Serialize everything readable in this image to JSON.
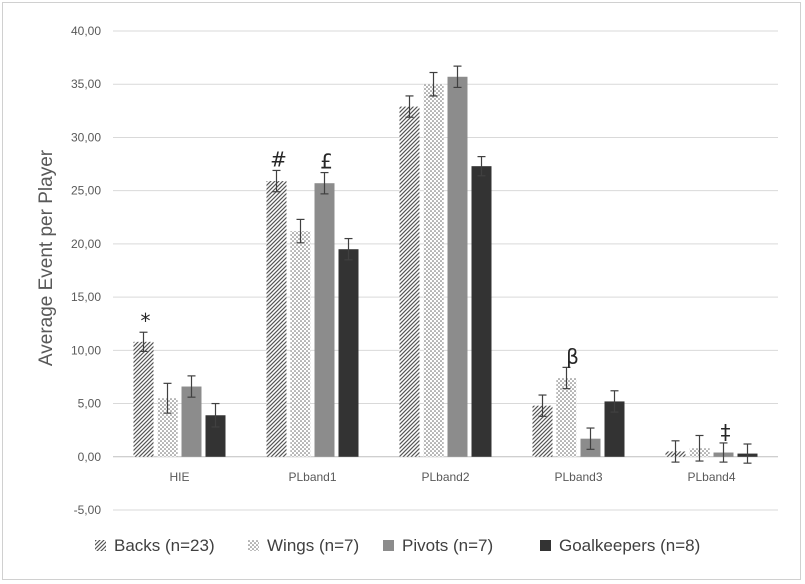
{
  "chart_data": {
    "type": "bar",
    "title": "",
    "xlabel": "",
    "ylabel": "Average Event  per Player",
    "ylim": [
      -5,
      40
    ],
    "yticks": [
      "-5,00",
      "0,00",
      "5,00",
      "10,00",
      "15,00",
      "20,00",
      "25,00",
      "30,00",
      "35,00",
      "40,00"
    ],
    "ytick_values": [
      -5,
      0,
      5,
      10,
      15,
      20,
      25,
      30,
      35,
      40
    ],
    "categories": [
      "HIE",
      "PLband1",
      "PLband2",
      "PLband3",
      "PLband4"
    ],
    "grid": true,
    "legend_position": "bottom",
    "series": [
      {
        "name": "Backs (n=23)",
        "pattern": "diagonal-hatch",
        "values": [
          10.8,
          25.9,
          32.9,
          4.8,
          0.5
        ],
        "errors": [
          0.9,
          1.0,
          1.0,
          1.0,
          1.0
        ]
      },
      {
        "name": "Wings (n=7)",
        "pattern": "dots",
        "values": [
          5.5,
          21.2,
          35.0,
          7.4,
          0.8
        ],
        "errors": [
          1.4,
          1.1,
          1.1,
          1.0,
          1.2
        ]
      },
      {
        "name": "Pivots (n=7)",
        "pattern": "solid-gray",
        "values": [
          6.6,
          25.7,
          35.7,
          1.7,
          0.4
        ],
        "errors": [
          1.0,
          1.0,
          1.0,
          1.0,
          0.9
        ]
      },
      {
        "name": "Goalkeepers (n=8)",
        "pattern": "solid-dark",
        "values": [
          3.9,
          19.5,
          27.3,
          5.2,
          0.3
        ],
        "errors": [
          1.1,
          1.0,
          0.9,
          1.0,
          0.9
        ]
      }
    ],
    "annotations": [
      {
        "text": "*",
        "category": "HIE",
        "series": 0
      },
      {
        "text": "#",
        "category": "PLband1",
        "series": 0
      },
      {
        "text": "£",
        "category": "PLband1",
        "series": 2
      },
      {
        "text": "β",
        "category": "PLband3",
        "series": 1
      },
      {
        "text": "‡",
        "category": "PLband4",
        "series": 2
      }
    ],
    "colors": {
      "backs": "#555555",
      "wings": "#666666",
      "pivots": "#8c8c8c",
      "goalkeepers": "#333333",
      "grid": "#d9d9d9",
      "axis": "#bfbfbf",
      "error_bar": "#404040"
    }
  }
}
